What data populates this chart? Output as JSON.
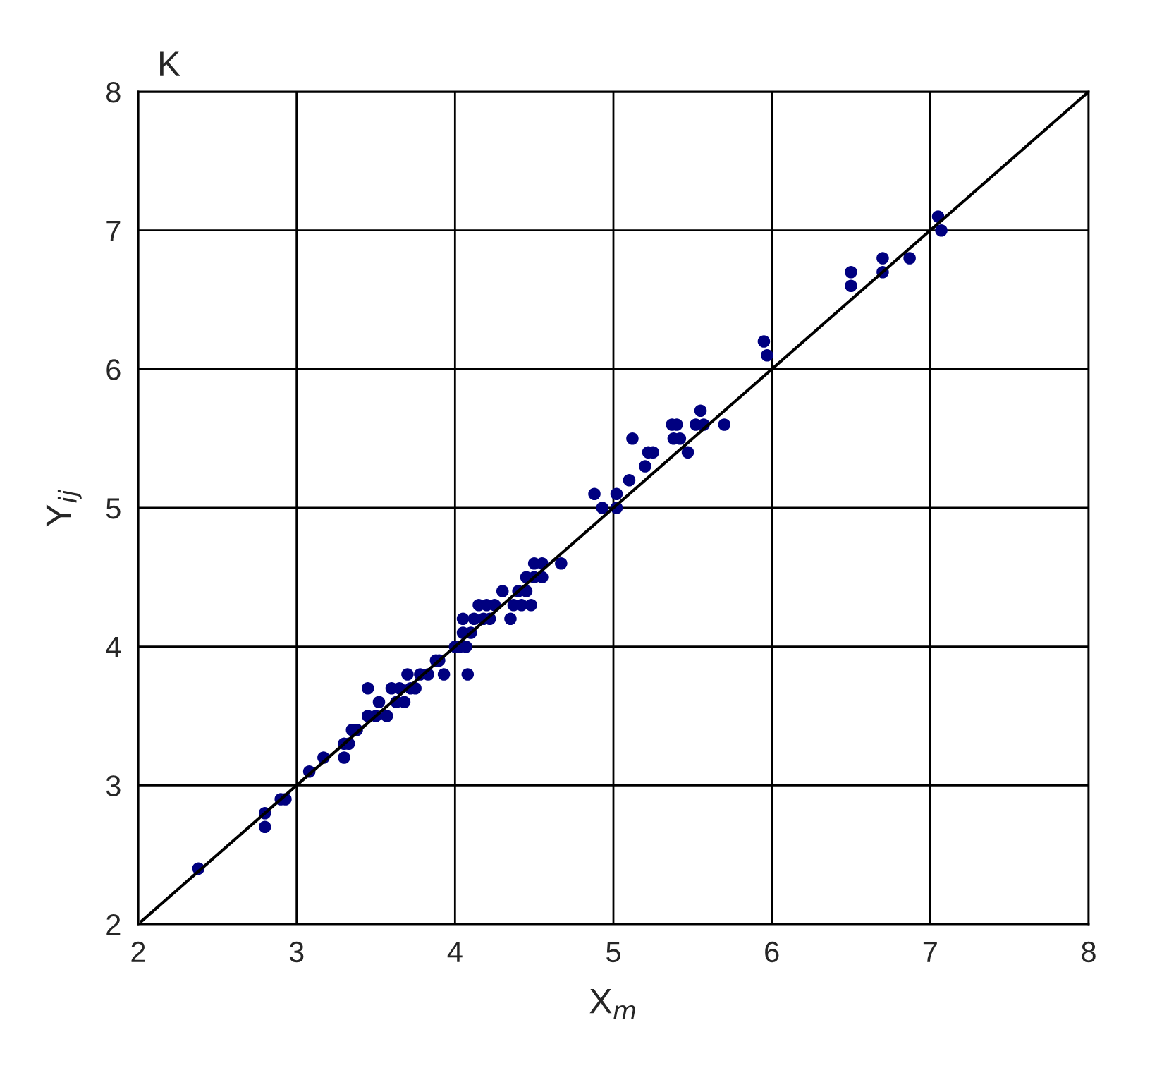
{
  "chart_data": {
    "type": "scatter",
    "title": "K",
    "xlabel": "X$_{m}$",
    "ylabel": "Y$_{ij}$",
    "xlim": [
      2,
      8
    ],
    "ylim": [
      2,
      8
    ],
    "xticks": [
      2,
      3,
      4,
      5,
      6,
      7,
      8
    ],
    "yticks": [
      2,
      3,
      4,
      5,
      6,
      7,
      8
    ],
    "grid": true,
    "marker": "circle",
    "series": [
      {
        "color": "#000080",
        "x": [
          2.38,
          2.8,
          2.8,
          2.9,
          2.93,
          3.08,
          3.17,
          3.3,
          3.3,
          3.33,
          3.35,
          3.38,
          3.45,
          3.45,
          3.5,
          3.52,
          3.57,
          3.6,
          3.63,
          3.65,
          3.68,
          3.7,
          3.72,
          3.75,
          3.78,
          3.83,
          3.88,
          3.9,
          3.93,
          4.0,
          4.03,
          4.05,
          4.05,
          4.07,
          4.08,
          4.1,
          4.12,
          4.15,
          4.18,
          4.2,
          4.22,
          4.25,
          4.3,
          4.35,
          4.37,
          4.4,
          4.42,
          4.45,
          4.45,
          4.48,
          4.5,
          4.5,
          4.55,
          4.55,
          4.67,
          4.88,
          4.93,
          5.02,
          5.02,
          5.1,
          5.12,
          5.2,
          5.22,
          5.25,
          5.37,
          5.38,
          5.4,
          5.42,
          5.47,
          5.52,
          5.55,
          5.57,
          5.7,
          5.95,
          5.97,
          6.5,
          6.5,
          6.7,
          6.7,
          6.87,
          7.05,
          7.07
        ],
        "values": [
          2.4,
          2.8,
          2.7,
          2.9,
          2.9,
          3.1,
          3.2,
          3.3,
          3.2,
          3.3,
          3.4,
          3.4,
          3.5,
          3.7,
          3.5,
          3.6,
          3.5,
          3.7,
          3.6,
          3.7,
          3.6,
          3.8,
          3.7,
          3.7,
          3.8,
          3.8,
          3.9,
          3.9,
          3.8,
          4.0,
          4.0,
          4.2,
          4.1,
          4.0,
          3.8,
          4.1,
          4.2,
          4.3,
          4.2,
          4.3,
          4.2,
          4.3,
          4.4,
          4.2,
          4.3,
          4.4,
          4.3,
          4.4,
          4.5,
          4.3,
          4.5,
          4.6,
          4.6,
          4.5,
          4.6,
          5.1,
          5.0,
          5.1,
          5.0,
          5.2,
          5.5,
          5.3,
          5.4,
          5.4,
          5.6,
          5.5,
          5.6,
          5.5,
          5.4,
          5.6,
          5.7,
          5.6,
          5.6,
          6.2,
          6.1,
          6.7,
          6.6,
          6.8,
          6.7,
          6.8,
          7.1,
          7.0
        ]
      },
      {
        "type": "line",
        "color": "#000000",
        "marker": "none",
        "x": [
          2.02,
          8
        ],
        "values": [
          2.02,
          8
        ]
      }
    ]
  }
}
